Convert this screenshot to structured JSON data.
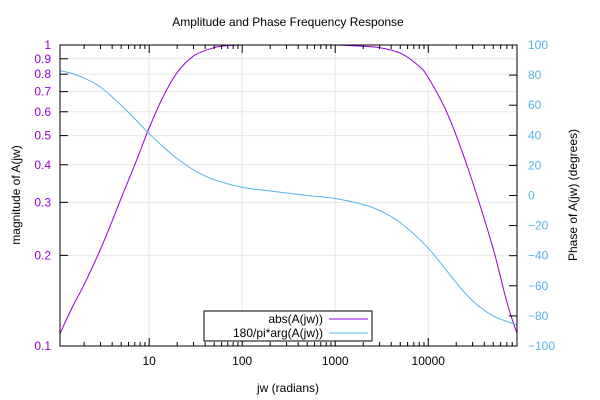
{
  "chart_data": {
    "type": "line",
    "title": "Amplitude and Phase Frequency Response",
    "xlabel": "jw (radians)",
    "ylabel": "magnitude of A(jw)",
    "y2label": "Phase of A(jw) (degrees)",
    "xscale": "log",
    "yscale": "log",
    "xlim": [
      1.1,
      90000
    ],
    "ylim": [
      0.1,
      1
    ],
    "y2lim": [
      -100,
      100
    ],
    "grid": true,
    "legend_position": "bottom-center",
    "x_ticks": [
      {
        "value": 10,
        "label": "10"
      },
      {
        "value": 100,
        "label": "100"
      },
      {
        "value": 1000,
        "label": "1000"
      },
      {
        "value": 10000,
        "label": "10000"
      }
    ],
    "y_ticks": [
      {
        "value": 0.1,
        "label": "0.1"
      },
      {
        "value": 0.2,
        "label": "0.2"
      },
      {
        "value": 0.3,
        "label": "0.3"
      },
      {
        "value": 0.4,
        "label": "0.4"
      },
      {
        "value": 0.5,
        "label": "0.5"
      },
      {
        "value": 0.6,
        "label": "0.6"
      },
      {
        "value": 0.7,
        "label": "0.7"
      },
      {
        "value": 0.8,
        "label": "0.8"
      },
      {
        "value": 0.9,
        "label": "0.9"
      },
      {
        "value": 1,
        "label": "1"
      }
    ],
    "y2_ticks": [
      {
        "value": -100,
        "label": "−100"
      },
      {
        "value": -80,
        "label": "−80"
      },
      {
        "value": -60,
        "label": "−60"
      },
      {
        "value": -40,
        "label": "−40"
      },
      {
        "value": -20,
        "label": "−20"
      },
      {
        "value": 0,
        "label": "0"
      },
      {
        "value": 20,
        "label": "20"
      },
      {
        "value": 40,
        "label": "40"
      },
      {
        "value": 60,
        "label": "60"
      },
      {
        "value": 80,
        "label": "80"
      },
      {
        "value": 100,
        "label": "100"
      }
    ],
    "series": [
      {
        "name": "abs(A(jw))",
        "axis": "left",
        "color": "#9400d3",
        "x": [
          1.1,
          1.5,
          2,
          3,
          4,
          5,
          7,
          10,
          14,
          20,
          30,
          50,
          70,
          100,
          200,
          500,
          1000,
          2000,
          3000,
          5000,
          8000,
          10000,
          15000,
          20000,
          30000,
          50000,
          70000,
          90000
        ],
        "y": [
          0.11,
          0.135,
          0.16,
          0.21,
          0.26,
          0.31,
          0.4,
          0.53,
          0.67,
          0.81,
          0.92,
          0.98,
          0.995,
          1.0,
          1.0,
          1.0,
          1.0,
          0.99,
          0.98,
          0.94,
          0.85,
          0.78,
          0.62,
          0.5,
          0.35,
          0.21,
          0.14,
          0.11
        ]
      },
      {
        "name": "180/pi*arg(A(jw))",
        "axis": "right",
        "color": "#56b4e9",
        "x": [
          1.1,
          1.5,
          2,
          3,
          5,
          7,
          10,
          15,
          20,
          30,
          50,
          100,
          200,
          500,
          1000,
          2000,
          3000,
          5000,
          10000,
          20000,
          30000,
          50000,
          90000
        ],
        "y": [
          83,
          81,
          78,
          72,
          60,
          51,
          41,
          31,
          24.5,
          17,
          10.5,
          5.5,
          3,
          0,
          -2,
          -6,
          -10,
          -18,
          -35,
          -58,
          -70,
          -80,
          -86
        ]
      }
    ]
  }
}
